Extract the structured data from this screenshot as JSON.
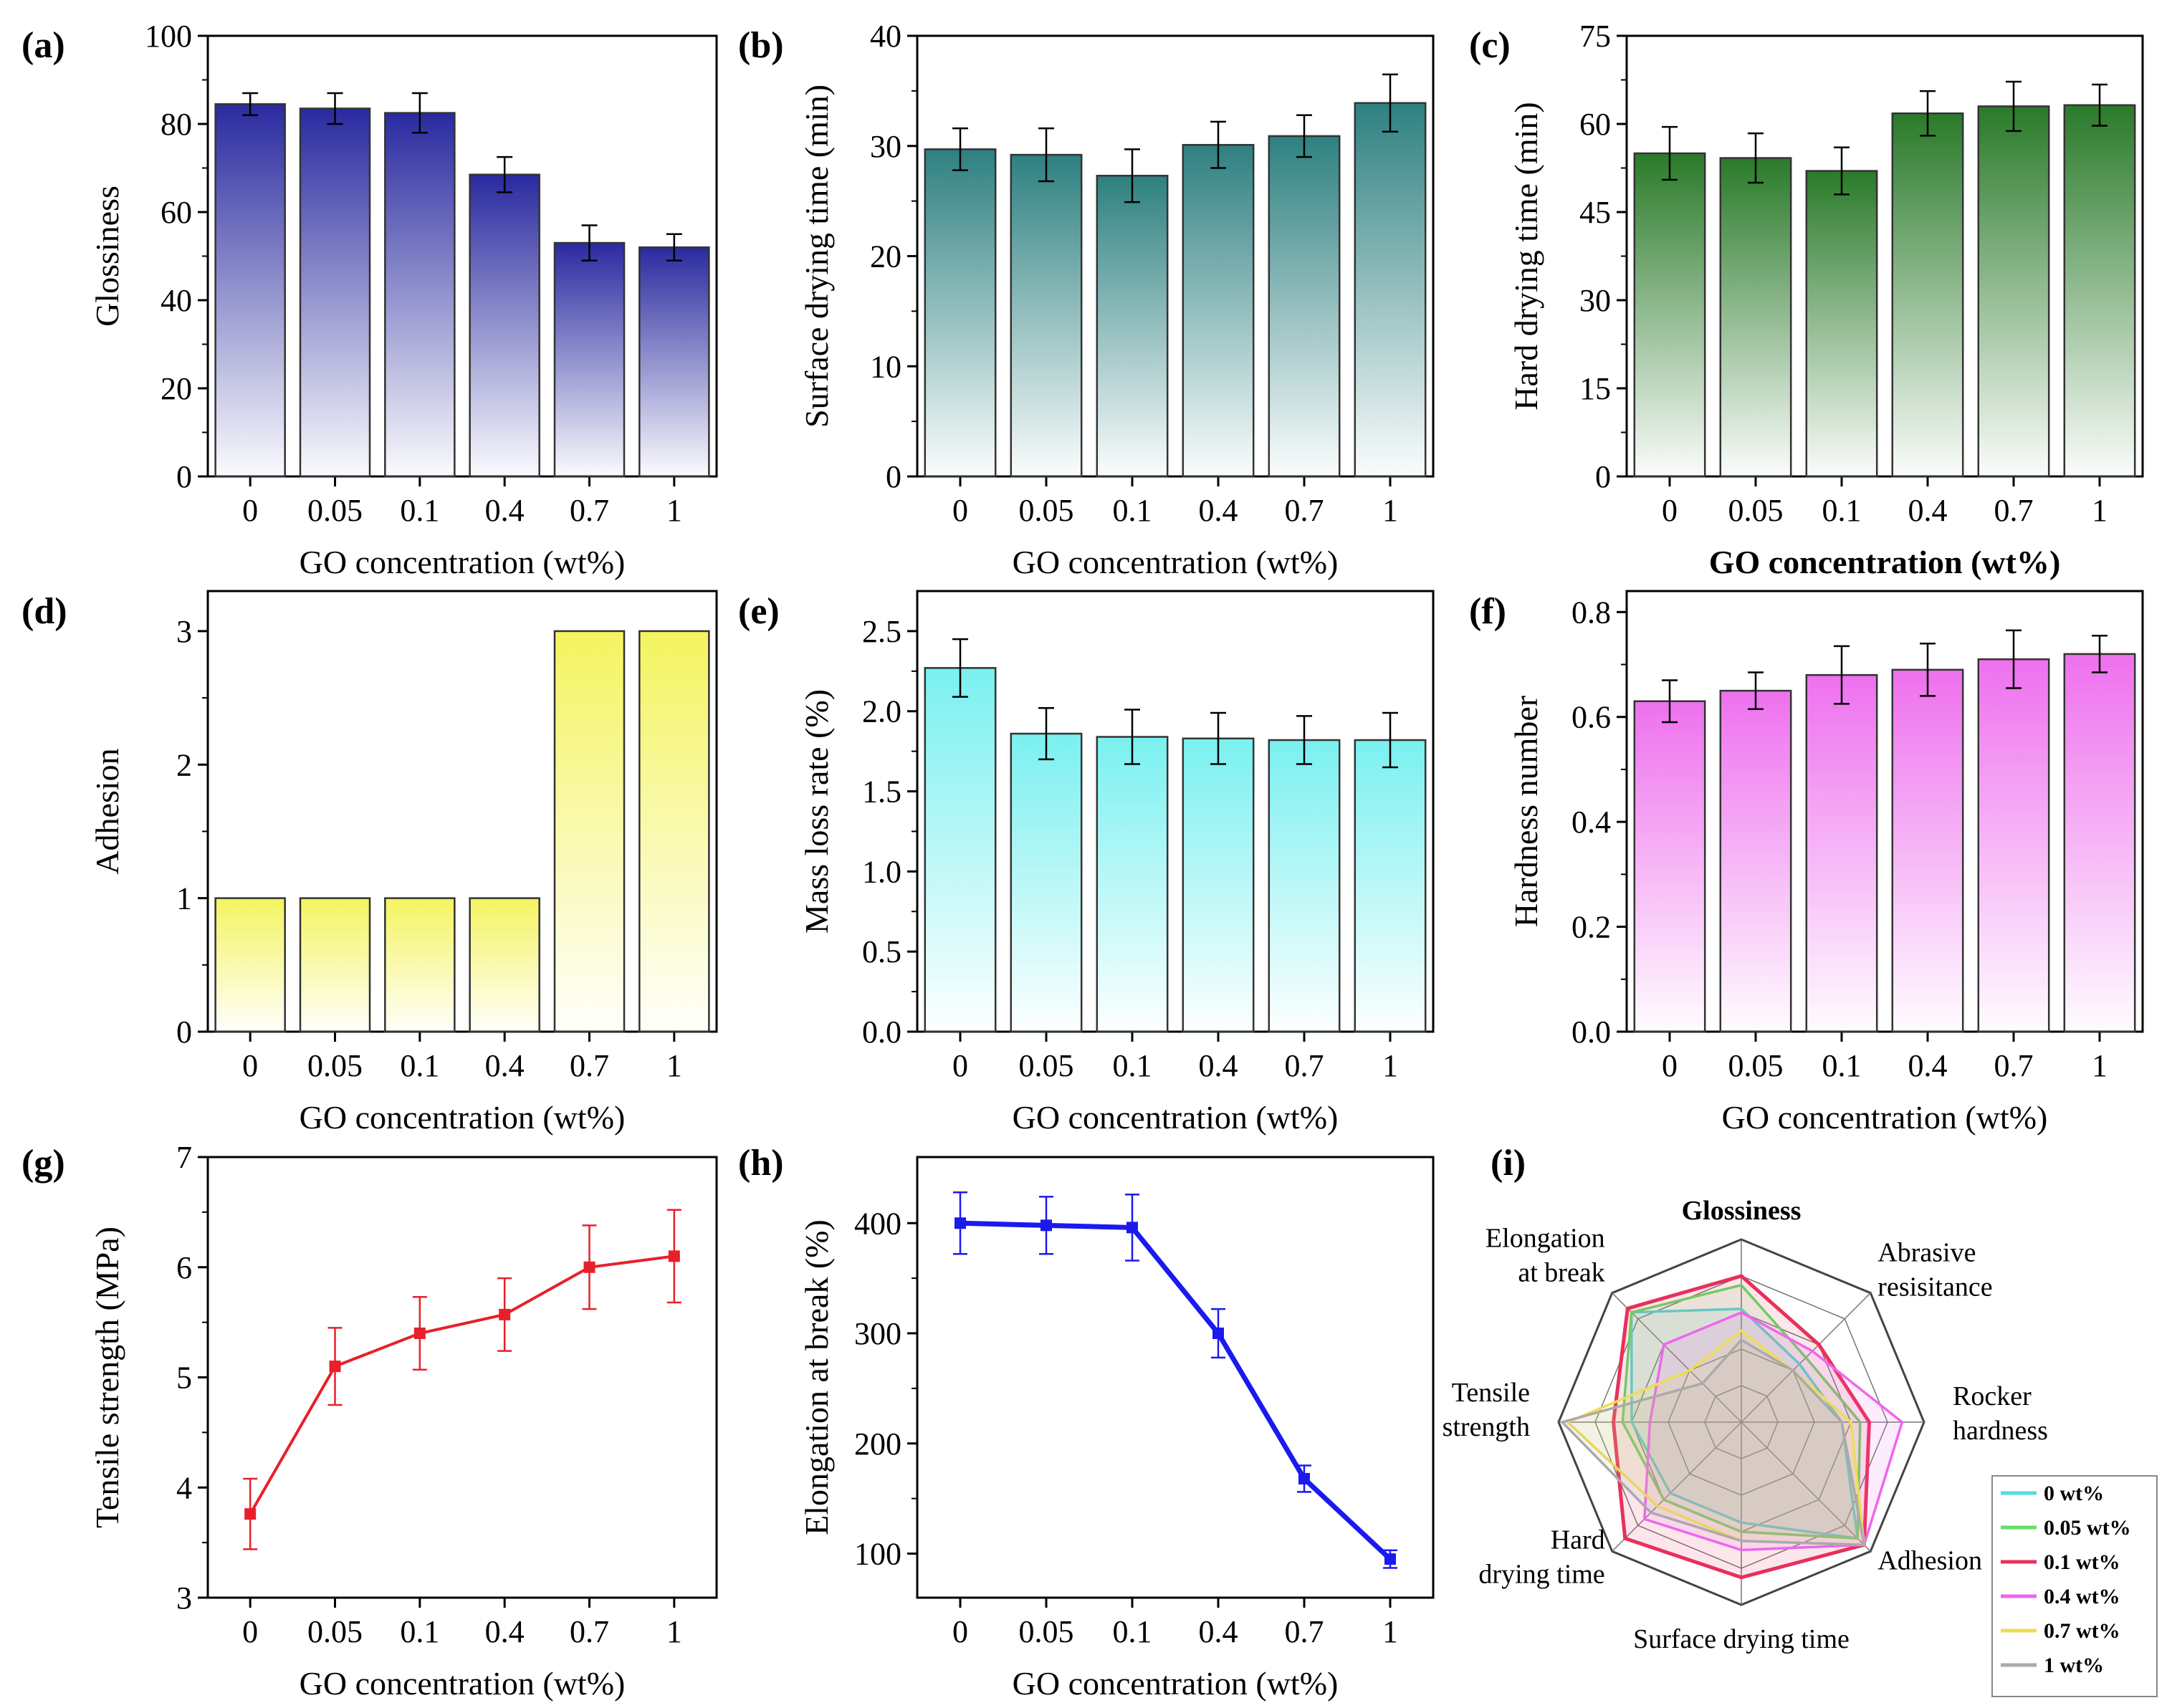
{
  "figure": {
    "charts": [
      {
        "id": "a",
        "panel_label": "(a)"
      },
      {
        "id": "b",
        "panel_label": "(b)"
      },
      {
        "id": "c",
        "panel_label": "(c)"
      },
      {
        "id": "d",
        "panel_label": "(d)"
      },
      {
        "id": "e",
        "panel_label": "(e)"
      },
      {
        "id": "f",
        "panel_label": "(f)"
      },
      {
        "id": "g",
        "panel_label": "(g)"
      },
      {
        "id": "h",
        "panel_label": "(h)"
      },
      {
        "id": "i",
        "panel_label": "(i)"
      }
    ]
  },
  "chart_data": [
    {
      "id": "a",
      "type": "bar",
      "categories": [
        "0",
        "0.05",
        "0.1",
        "0.4",
        "0.7",
        "1"
      ],
      "values": [
        84.5,
        83.5,
        82.5,
        68.5,
        53,
        52
      ],
      "errors": [
        2.5,
        3.5,
        4.5,
        4,
        4,
        3
      ],
      "xlabel": "GO concentration (wt%)",
      "ylabel": "Glossiness",
      "ylim": [
        0,
        100
      ],
      "yticks": [
        "0",
        "20",
        "40",
        "60",
        "80",
        "100"
      ],
      "color": "#2a2aa0"
    },
    {
      "id": "b",
      "type": "bar",
      "categories": [
        "0",
        "0.05",
        "0.1",
        "0.4",
        "0.7",
        "1"
      ],
      "values": [
        29.7,
        29.2,
        27.3,
        30.1,
        30.9,
        33.9
      ],
      "errors": [
        1.9,
        2.4,
        2.4,
        2.1,
        1.9,
        2.6
      ],
      "xlabel": "GO concentration (wt%)",
      "ylabel": "Surface drying time (min)",
      "ylim": [
        0,
        40
      ],
      "yticks": [
        "0",
        "10",
        "20",
        "30",
        "40"
      ],
      "color": "#2e8080"
    },
    {
      "id": "c",
      "type": "bar",
      "categories": [
        "0",
        "0.05",
        "0.1",
        "0.4",
        "0.7",
        "1"
      ],
      "values": [
        55,
        54.2,
        52,
        61.8,
        63,
        63.2
      ],
      "errors": [
        4.5,
        4.2,
        4,
        3.8,
        4.2,
        3.5
      ],
      "xlabel": "GO concentration (wt%)",
      "ylabel": "Hard drying time (min)",
      "ylim": [
        0,
        75
      ],
      "yticks": [
        "0",
        "15",
        "30",
        "45",
        "60",
        "75"
      ],
      "color": "#2a7a2a"
    },
    {
      "id": "d",
      "type": "bar",
      "categories": [
        "0",
        "0.05",
        "0.1",
        "0.4",
        "0.7",
        "1"
      ],
      "values": [
        1,
        1,
        1,
        1,
        3,
        3
      ],
      "xlabel": "GO concentration (wt%)",
      "ylabel": "Adhesion",
      "ylim": [
        0,
        3.3
      ],
      "yticks": [
        "0",
        "1",
        "2",
        "3"
      ],
      "color": "#f4f460"
    },
    {
      "id": "e",
      "type": "bar",
      "categories": [
        "0",
        "0.05",
        "0.1",
        "0.4",
        "0.7",
        "1"
      ],
      "values": [
        2.27,
        1.86,
        1.84,
        1.83,
        1.82,
        1.82
      ],
      "errors": [
        0.18,
        0.16,
        0.17,
        0.16,
        0.15,
        0.17
      ],
      "xlabel": "GO concentration (wt%)",
      "ylabel": "Mass loss rate (%)",
      "ylim": [
        0,
        2.75
      ],
      "yticks": [
        "0.0",
        "0.5",
        "1.0",
        "1.5",
        "2.0",
        "2.5"
      ],
      "color": "#7af0f0"
    },
    {
      "id": "f",
      "type": "bar",
      "categories": [
        "0",
        "0.05",
        "0.1",
        "0.4",
        "0.7",
        "1"
      ],
      "values": [
        0.63,
        0.65,
        0.68,
        0.69,
        0.71,
        0.72
      ],
      "errors": [
        0.04,
        0.035,
        0.055,
        0.05,
        0.055,
        0.035
      ],
      "xlabel": "GO concentration (wt%)",
      "ylabel": "Hardness number",
      "ylim": [
        0,
        0.84
      ],
      "yticks": [
        "0.0",
        "0.2",
        "0.4",
        "0.6",
        "0.8"
      ],
      "color": "#ee70ee"
    },
    {
      "id": "g",
      "type": "line",
      "categories": [
        "0",
        "0.05",
        "0.1",
        "0.4",
        "0.7",
        "1"
      ],
      "values": [
        3.76,
        5.1,
        5.4,
        5.57,
        6.0,
        6.1
      ],
      "errors": [
        0.32,
        0.35,
        0.33,
        0.33,
        0.38,
        0.42
      ],
      "xlabel": "GO concentration (wt%)",
      "ylabel": "Tensile strength (MPa)",
      "ylim": [
        3,
        7
      ],
      "yticks": [
        "3",
        "4",
        "5",
        "6",
        "7"
      ],
      "color": "#e8202a"
    },
    {
      "id": "h",
      "type": "line",
      "categories": [
        "0",
        "0.05",
        "0.1",
        "0.4",
        "0.7",
        "1"
      ],
      "values": [
        400,
        398,
        396,
        300,
        168,
        95
      ],
      "errors": [
        28,
        26,
        30,
        22,
        12,
        8
      ],
      "xlabel": "GO concentration (wt%)",
      "ylabel": "Elongation at break (%)",
      "ylim": [
        60,
        460
      ],
      "yticks": [
        "100",
        "200",
        "300",
        "400"
      ],
      "ytick_values": [
        100,
        200,
        300,
        400
      ],
      "color": "#1a1aee"
    },
    {
      "id": "i",
      "type": "radar",
      "axes": [
        "Glossiness",
        "Abrasive resisitance",
        "Rocker hardness",
        "Adhesion",
        "Surface drying time",
        "Hard drying time",
        "Tensile strength",
        "Elongation at break"
      ],
      "axis_label_lines": [
        [
          "Glossiness"
        ],
        [
          "Abrasive",
          "resisitance"
        ],
        [
          "Rocker",
          "hardness"
        ],
        [
          "Adhesion"
        ],
        [
          "Surface drying time"
        ],
        [
          "Hard",
          "drying time"
        ],
        [
          "Tensile",
          "strength"
        ],
        [
          "Elongation",
          "at break"
        ]
      ],
      "rmax": 1,
      "series": [
        {
          "name": "0 wt%",
          "color": "#55dde0",
          "values": [
            0.62,
            0.45,
            0.55,
            0.9,
            0.55,
            0.55,
            0.6,
            0.85
          ]
        },
        {
          "name": "0.05 wt%",
          "color": "#66dd66",
          "values": [
            0.75,
            0.5,
            0.65,
            0.9,
            0.6,
            0.6,
            0.65,
            0.85
          ]
        },
        {
          "name": "0.1 wt%",
          "color": "#e8305a",
          "values": [
            0.8,
            0.6,
            0.7,
            0.95,
            0.85,
            0.9,
            0.7,
            0.88
          ]
        },
        {
          "name": "0.4 wt%",
          "color": "#ee66ee",
          "values": [
            0.6,
            0.55,
            0.88,
            0.95,
            0.7,
            0.75,
            0.5,
            0.6
          ]
        },
        {
          "name": "0.7 wt%",
          "color": "#eedd55",
          "values": [
            0.5,
            0.4,
            0.6,
            0.95,
            0.65,
            0.65,
            0.95,
            0.4
          ]
        },
        {
          "name": "1 wt%",
          "color": "#aaaaaa",
          "values": [
            0.45,
            0.4,
            0.55,
            0.95,
            0.65,
            0.7,
            0.98,
            0.3
          ]
        }
      ]
    }
  ]
}
